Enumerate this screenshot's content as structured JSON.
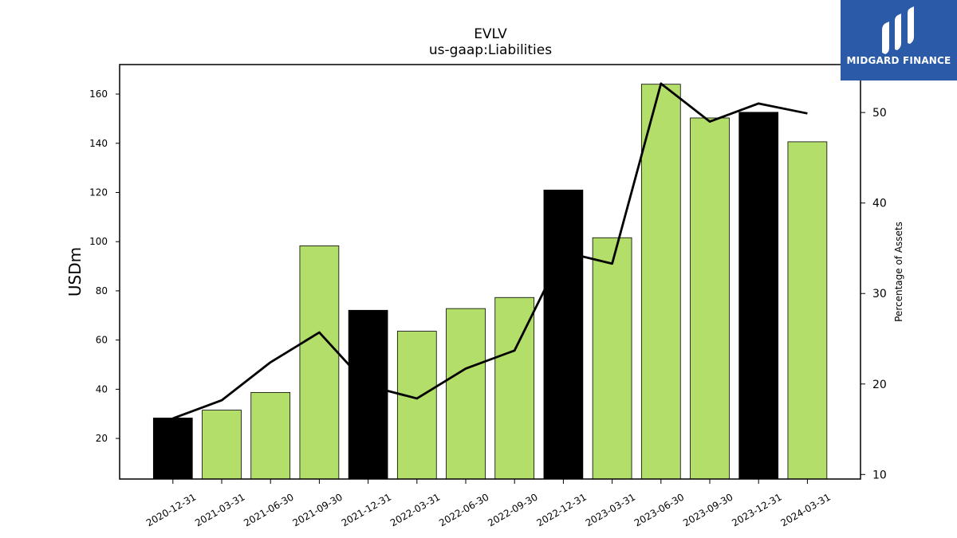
{
  "chart_data": {
    "type": "bar",
    "title": "EVLV",
    "subtitle": "us-gaap:Liabilities",
    "ylabel": "USDm",
    "y2label": "Percentage of Assets",
    "categories": [
      "2020-12-31",
      "2021-03-31",
      "2021-06-30",
      "2021-09-30",
      "2021-12-31",
      "2022-03-31",
      "2022-06-30",
      "2022-09-30",
      "2022-12-31",
      "2023-03-31",
      "2023-06-30",
      "2023-09-30",
      "2023-12-31",
      "2024-03-31"
    ],
    "values": [
      28.3,
      31.5,
      38.7,
      98.3,
      72.1,
      63.6,
      72.8,
      77.3,
      121.0,
      101.6,
      164.0,
      150.3,
      152.6,
      140.6
    ],
    "bar_colors": [
      "#000000",
      "#b3de69",
      "#b3de69",
      "#b3de69",
      "#000000",
      "#b3de69",
      "#b3de69",
      "#b3de69",
      "#000000",
      "#b3de69",
      "#b3de69",
      "#b3de69",
      "#000000",
      "#b3de69"
    ],
    "line_values": [
      16.2,
      18.2,
      22.4,
      25.7,
      19.8,
      18.4,
      21.7,
      23.7,
      34.6,
      33.3,
      53.2,
      49.0,
      51.0,
      49.9
    ],
    "line_color": "#000000",
    "ylim": [
      3.5,
      172
    ],
    "y2lim": [
      9.5,
      55.3
    ],
    "yticks": [
      20,
      40,
      60,
      80,
      100,
      120,
      140,
      160
    ],
    "y2ticks": [
      10,
      20,
      30,
      40,
      50
    ],
    "grid": false
  },
  "logo": {
    "text": "MIDGARD FINANCE",
    "icon": "midgard-finance-logo-icon"
  }
}
